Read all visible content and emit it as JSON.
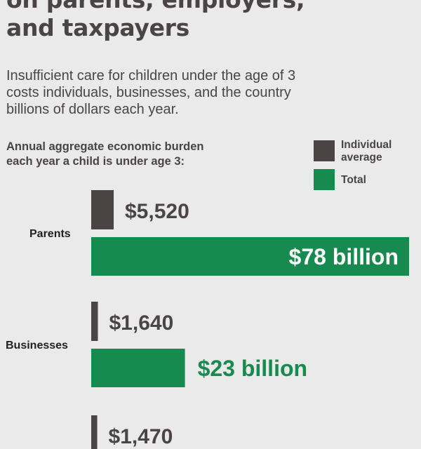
{
  "header": {
    "title_lines": [
      "on parents, employers,",
      "and taxpayers"
    ],
    "subtitle_lines": [
      "Insufficient care for children under the age of 3",
      "costs individuals, businesses, and the country",
      "billions of dollars each year."
    ]
  },
  "chart_data": {
    "type": "bar",
    "label_lines": [
      "Annual aggregate economic burden",
      "each year a child is under age 3:"
    ],
    "legend": [
      {
        "label_lines": [
          "Individual",
          "average"
        ],
        "color": "#4a4444"
      },
      {
        "label_lines": [
          "Total"
        ],
        "color": "#168a4f"
      }
    ],
    "categories": [
      "Parents",
      "Businesses",
      ""
    ],
    "series": [
      {
        "name": "Individual average",
        "values": [
          5520,
          1640,
          1470
        ],
        "labels": [
          "$5,520",
          "$1,640",
          "$1,470"
        ],
        "color": "#4a4444"
      },
      {
        "name": "Total",
        "values": [
          78,
          23,
          null
        ],
        "labels": [
          "$78 billion",
          "$23 billion",
          ""
        ],
        "unit": "billion USD",
        "color": "#168a4f"
      }
    ]
  }
}
